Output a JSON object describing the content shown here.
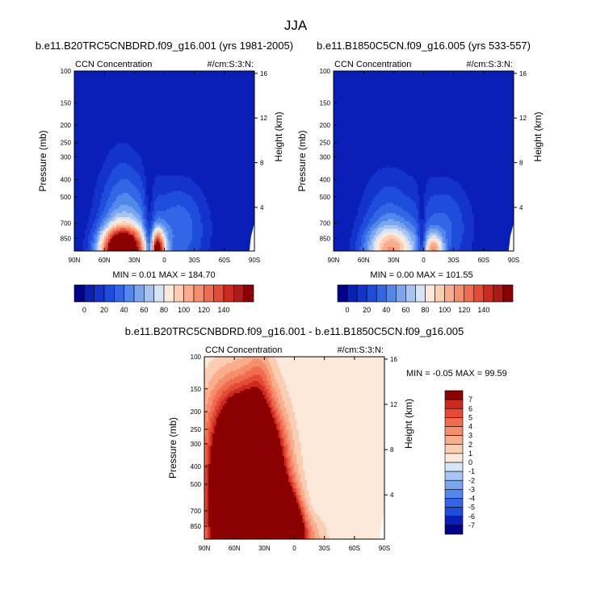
{
  "figure": {
    "title": "JJA"
  },
  "palette": {
    "base": [
      "#00008b",
      "#0a1fb8",
      "#1433cc",
      "#1f4ddb",
      "#3366e6",
      "#5287ec",
      "#7aa6f0",
      "#a6c4f4",
      "#d6e6f8",
      "#fde9d9",
      "#fbcdb2",
      "#f9ad8c",
      "#f58e6c",
      "#f06c4f",
      "#e44a35",
      "#cd2a1f",
      "#ad1a1a",
      "#8b0000"
    ],
    "diff": [
      "#00008b",
      "#0a1fb8",
      "#1f4ddb",
      "#3366e6",
      "#5287ec",
      "#7aa6f0",
      "#a6c4f4",
      "#d6e6f8",
      "#fde9d9",
      "#fbcdb2",
      "#f9ad8c",
      "#f58e6c",
      "#f06c4f",
      "#e44a35",
      "#cd2a1f",
      "#8b0000"
    ]
  },
  "chart_data": [
    {
      "type": "heatmap",
      "title": "b.e11.B20TRC5CNBDRD.f09_g16.001 (yrs 1981-2005)",
      "left_label": "CCN Concentration",
      "right_label": "#/cm:S:3:N:",
      "xlabel": "",
      "ylabel": "Pressure (mb)",
      "y2label": "Height (km)",
      "x_ticks": [
        "90N",
        "60N",
        "30N",
        "0",
        "30S",
        "60S",
        "90S"
      ],
      "x_tick_values": [
        90,
        60,
        30,
        0,
        -30,
        -60,
        -90
      ],
      "y_ticks": [
        "100",
        "150",
        "200",
        "250",
        "300",
        "400",
        "500",
        "700",
        "850"
      ],
      "y_tick_values": [
        100,
        150,
        200,
        250,
        300,
        400,
        500,
        700,
        850
      ],
      "y2_ticks": [
        "16",
        "12",
        "8",
        "4"
      ],
      "y2_tick_values": [
        16,
        12,
        8,
        4
      ],
      "ylim": [
        100,
        1000
      ],
      "stats": "MIN =   0.01  MAX = 184.70",
      "colorbar_labels": [
        "0",
        "20",
        "40",
        "60",
        "80",
        "100",
        "120",
        "140"
      ],
      "colorbar_levels": [
        -10,
        0,
        10,
        20,
        30,
        40,
        50,
        60,
        70,
        80,
        90,
        100,
        110,
        120,
        130,
        140,
        150
      ],
      "blobs": [
        {
          "lat": 42,
          "p": 1000,
          "w": 22,
          "h": 3.0,
          "amp": 185
        },
        {
          "lat": 8,
          "p": 1000,
          "w": 9,
          "h": 2.6,
          "amp": 150
        },
        {
          "lat": 40,
          "p": 700,
          "w": 26,
          "h": 7.5,
          "amp": 50
        },
        {
          "lat": -15,
          "p": 760,
          "w": 28,
          "h": 6.0,
          "amp": 38
        },
        {
          "lat": 45,
          "p": 280,
          "w": 14,
          "h": 4.0,
          "amp": 3
        }
      ],
      "notch": {
        "lat": 15,
        "depth": 0.7,
        "w": 5
      }
    },
    {
      "type": "heatmap",
      "title": "b.e11.B1850C5CN.f09_g16.005 (yrs 533-557)",
      "left_label": "CCN Concentration",
      "right_label": "#/cm:S:3:N:",
      "xlabel": "",
      "ylabel": "Pressure (mb)",
      "y2label": "Height (km)",
      "x_ticks": [
        "90N",
        "60N",
        "30N",
        "0",
        "30S",
        "60S",
        "90S"
      ],
      "x_tick_values": [
        90,
        60,
        30,
        0,
        -30,
        -60,
        -90
      ],
      "y_ticks": [
        "100",
        "150",
        "200",
        "250",
        "300",
        "400",
        "500",
        "700",
        "850"
      ],
      "y_tick_values": [
        100,
        150,
        200,
        250,
        300,
        400,
        500,
        700,
        850
      ],
      "y2_ticks": [
        "16",
        "12",
        "8",
        "4"
      ],
      "y2_tick_values": [
        16,
        12,
        8,
        4
      ],
      "ylim": [
        100,
        1000
      ],
      "stats": "MIN =   0.00  MAX = 101.55",
      "colorbar_labels": [
        "0",
        "20",
        "40",
        "60",
        "80",
        "100",
        "120",
        "140"
      ],
      "colorbar_levels": [
        -10,
        0,
        10,
        20,
        30,
        40,
        50,
        60,
        70,
        80,
        90,
        100,
        110,
        120,
        130,
        140,
        150
      ],
      "blobs": [
        {
          "lat": 32,
          "p": 1000,
          "w": 26,
          "h": 3.2,
          "amp": 85
        },
        {
          "lat": -10,
          "p": 1000,
          "w": 10,
          "h": 2.2,
          "amp": 82
        },
        {
          "lat": 35,
          "p": 720,
          "w": 28,
          "h": 7.0,
          "amp": 32
        },
        {
          "lat": -20,
          "p": 740,
          "w": 28,
          "h": 6.0,
          "amp": 32
        }
      ],
      "notch": {
        "lat": 2,
        "depth": 0.7,
        "w": 4
      }
    },
    {
      "type": "heatmap",
      "title": "b.e11.B20TRC5CNBDRD.f09_g16.001 - b.e11.B1850C5CN.f09_g16.005",
      "left_label": "CCN Concentration",
      "right_label": "#/cm:S:3:N:",
      "xlabel": "",
      "ylabel": "Pressure (mb)",
      "y2label": "Height (km)",
      "x_ticks": [
        "90N",
        "60N",
        "30N",
        "0",
        "30S",
        "60S",
        "90S"
      ],
      "x_tick_values": [
        90,
        60,
        30,
        0,
        -30,
        -60,
        -90
      ],
      "y_ticks": [
        "100",
        "150",
        "200",
        "250",
        "300",
        "400",
        "500",
        "700",
        "850"
      ],
      "y_tick_values": [
        100,
        150,
        200,
        250,
        300,
        400,
        500,
        700,
        850
      ],
      "y2_ticks": [
        "16",
        "12",
        "8",
        "4"
      ],
      "y2_tick_values": [
        16,
        12,
        8,
        4
      ],
      "ylim": [
        100,
        1000
      ],
      "stats": "MIN =  -0.05  MAX =  99.59",
      "colorbar_labels": [
        "7",
        "6",
        "5",
        "4",
        "3",
        "2",
        "1",
        "0",
        "-1",
        "-2",
        "-3",
        "-4",
        "-5",
        "-6",
        "-7"
      ],
      "colorbar_levels": [
        -8,
        -7,
        -6,
        -5,
        -4,
        -3,
        -2,
        -1,
        0,
        1,
        2,
        3,
        4,
        5,
        6,
        7,
        8
      ],
      "blobs": [
        {
          "lat": 45,
          "p": 600,
          "w": 28,
          "h": 10,
          "amp": 40
        },
        {
          "lat": 8,
          "p": 950,
          "w": 14,
          "h": 4.5,
          "amp": 20
        },
        {
          "lat": 35,
          "p": 130,
          "w": 12,
          "h": 5.0,
          "amp": 1.8
        },
        {
          "lat": 75,
          "p": 200,
          "w": 22,
          "h": 6.0,
          "amp": 2.2
        },
        {
          "lat": 70,
          "p": 600,
          "w": 25,
          "h": 9.0,
          "amp": 4.0
        },
        {
          "lat": -10,
          "p": 990,
          "w": 22,
          "h": 3.0,
          "amp": 3.0
        }
      ],
      "notch": null
    }
  ]
}
